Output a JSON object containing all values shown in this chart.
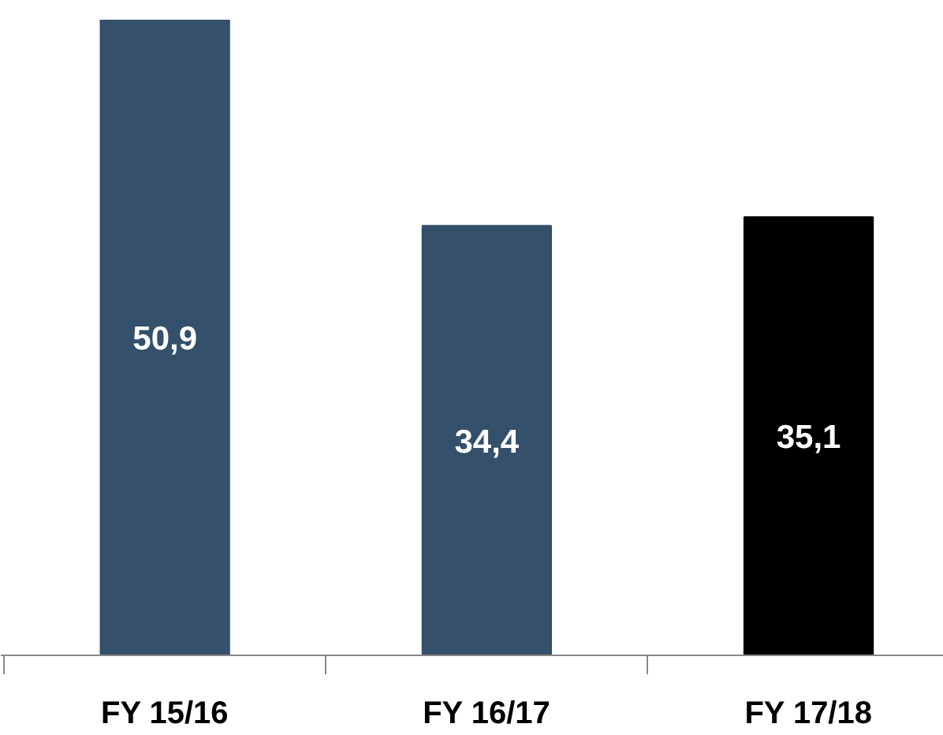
{
  "chart_data": {
    "type": "bar",
    "categories": [
      "FY 15/16",
      "FY 16/17",
      "FY 17/18"
    ],
    "values": [
      50.9,
      34.4,
      35.1
    ],
    "colors": [
      "#34506a",
      "#34506a",
      "#000000"
    ],
    "value_labels": [
      "50,9",
      "34,4",
      "35,1"
    ],
    "grid": false,
    "tick_labels": "x"
  }
}
